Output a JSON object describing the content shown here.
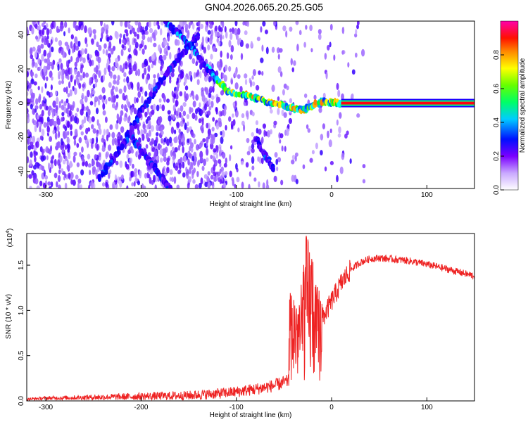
{
  "title": "GN04.2026.065.20.25.G05",
  "colors": {
    "snr_line": "#ee2222",
    "axis": "#000000"
  },
  "colorbar": {
    "label": "Normalized spectral amplitude",
    "ticks": [
      "0.0",
      "0.2",
      "0.4",
      "0.6",
      "0.8"
    ],
    "range": [
      0,
      1
    ],
    "colormap": [
      "#ffffff",
      "#a06bff",
      "#5a00ff",
      "#0000ff",
      "#00ffff",
      "#00ff00",
      "#ffff00",
      "#ff8800",
      "#ff0000",
      "#ff00aa"
    ]
  },
  "chart_data": [
    {
      "type": "heatmap",
      "title": "",
      "xlabel": "Height of straight line (km)",
      "ylabel": "Frequency (Hz)",
      "xlim": [
        -320,
        150
      ],
      "ylim": [
        -50,
        48
      ],
      "xticks": [
        "-300",
        "-200",
        "-100",
        "0",
        "100"
      ],
      "xtick_values": [
        -300,
        -200,
        -100,
        0,
        100
      ],
      "yticks": [
        "-40",
        "-20",
        "0",
        "20",
        "40"
      ],
      "ytick_values": [
        -40,
        -20,
        0,
        20,
        40
      ],
      "features": [
        {
          "kind": "track",
          "points": [
            [
              -175,
              48
            ],
            [
              -150,
              35
            ],
            [
              -130,
              20
            ],
            [
              -110,
              7
            ],
            [
              -80,
              3
            ],
            [
              -50,
              -2
            ],
            [
              -30,
              -4
            ],
            [
              -10,
              1
            ],
            [
              10,
              0
            ]
          ]
        },
        {
          "kind": "line",
          "points": [
            [
              10,
              0
            ],
            [
              150,
              0
            ]
          ],
          "amplitude": 0.9
        },
        {
          "kind": "track",
          "points": [
            [
              -140,
              40
            ],
            [
              -170,
              20
            ],
            [
              -200,
              -5
            ],
            [
              -220,
              -25
            ],
            [
              -245,
              -45
            ]
          ]
        },
        {
          "kind": "track",
          "points": [
            [
              -210,
              -20
            ],
            [
              -190,
              -35
            ],
            [
              -170,
              -50
            ]
          ]
        },
        {
          "kind": "track",
          "points": [
            [
              -80,
              -20
            ],
            [
              -60,
              -40
            ]
          ]
        }
      ]
    },
    {
      "type": "line",
      "title": "",
      "xlabel": "Height of straight line (km)",
      "ylabel": "SNR (10 * v/v)",
      "multiplier_label": "(x10",
      "multiplier_exp": "4",
      "xlim": [
        -320,
        150
      ],
      "ylim": [
        0,
        1.85
      ],
      "xticks": [
        "-300",
        "-200",
        "-100",
        "0",
        "100"
      ],
      "xtick_values": [
        -300,
        -200,
        -100,
        0,
        100
      ],
      "yticks": [
        "0.0",
        "0.5",
        "1.0",
        "1.5"
      ],
      "ytick_values": [
        0,
        0.5,
        1.0,
        1.5
      ],
      "series": [
        {
          "name": "",
          "x": [
            -320,
            -300,
            -250,
            -200,
            -150,
            -120,
            -100,
            -80,
            -60,
            -45,
            -40,
            -35,
            -30,
            -25,
            -20,
            -15,
            -10,
            0,
            10,
            20,
            30,
            40,
            50,
            60,
            80,
            100,
            120,
            150
          ],
          "y": [
            0.02,
            0.03,
            0.04,
            0.05,
            0.06,
            0.08,
            0.1,
            0.13,
            0.17,
            0.22,
            0.45,
            0.85,
            0.75,
            1.0,
            0.9,
            0.6,
            0.9,
            1.1,
            1.3,
            1.45,
            1.53,
            1.57,
            1.58,
            1.57,
            1.55,
            1.51,
            1.46,
            1.38
          ]
        }
      ]
    }
  ]
}
